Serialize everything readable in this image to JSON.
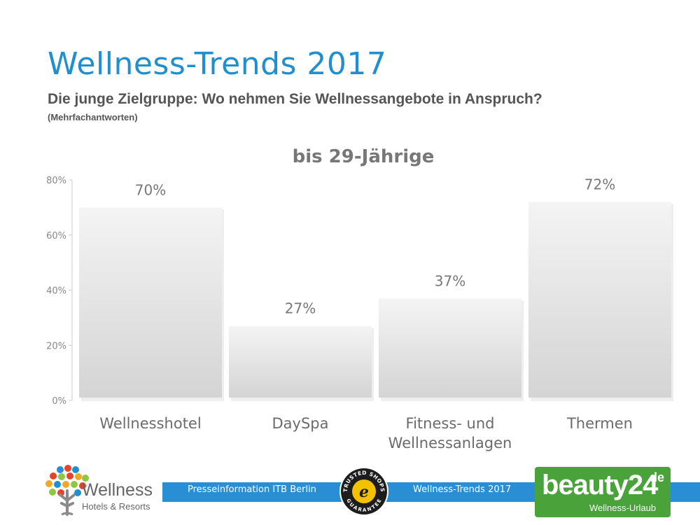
{
  "header": {
    "title": "Wellness-Trends 2017",
    "subtitle": "Die junge Zielgruppe: Wo nehmen Sie Wellnessangebote in Anspruch?",
    "note": "(Mehrfachantworten)"
  },
  "chart_data": {
    "type": "bar",
    "title": "bis 29-Jährige",
    "categories": [
      "Wellnesshotel",
      "DaySpa",
      "Fitness- und\nWellnessanlagen",
      "Thermen"
    ],
    "values": [
      70,
      27,
      37,
      72
    ],
    "data_labels": [
      "70%",
      "27%",
      "37%",
      "72%"
    ],
    "ylim": [
      0,
      80
    ],
    "yticks": [
      0,
      20,
      40,
      60,
      80
    ],
    "ytick_labels": [
      "0%",
      "20%",
      "40%",
      "60%",
      "80%"
    ],
    "xlabel": "",
    "ylabel": "",
    "grid": false,
    "bar_color": "#e6e6e6"
  },
  "footer": {
    "press": "Presseinformation ITB Berlin",
    "trends": "Wellness-Trends 2017",
    "wellness_logo": "Wellness",
    "wellness_logo_sub": "Hotels & Resorts",
    "beauty_logo": "beauty24",
    "beauty_logo_tld": "de",
    "beauty_logo_sub": "Wellness-Urlaub",
    "trusted_top": "TRUSTED SHOPS",
    "trusted_bottom": "GUARANTEE",
    "band_color": "#2a8ed4",
    "beauty_color": "#4aa23b"
  }
}
